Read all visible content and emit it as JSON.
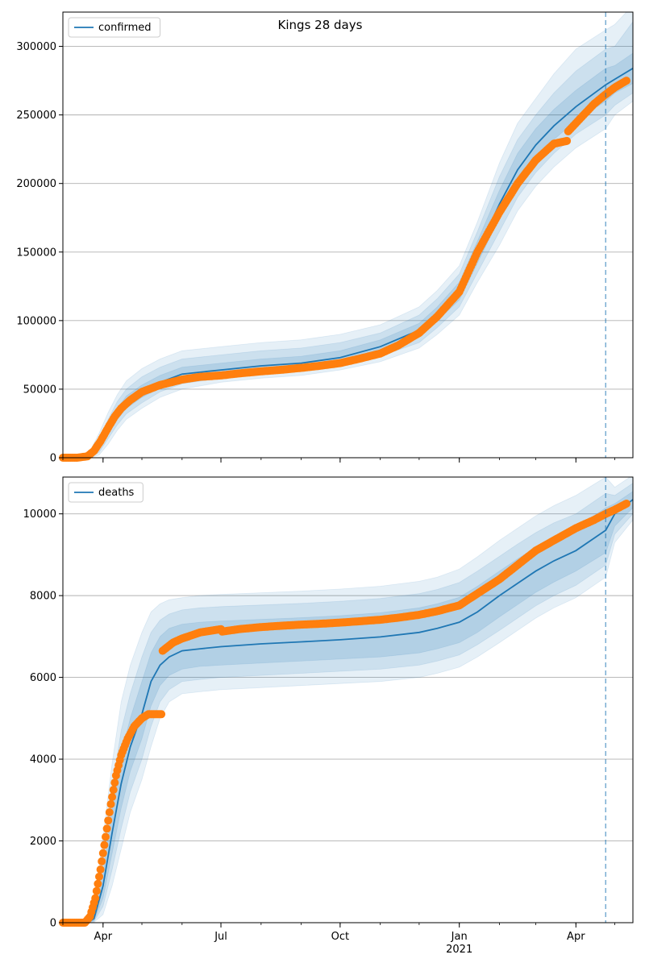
{
  "figure": {
    "title": "Kings 28 days"
  },
  "chart_data": [
    {
      "type": "line",
      "name": "confirmed-panel",
      "legend": {
        "label": "confirmed",
        "placement": "top-left"
      },
      "ylim": [
        0,
        325000
      ],
      "yticks": [
        0,
        50000,
        100000,
        150000,
        200000,
        250000,
        300000
      ],
      "grid": "y",
      "xlim": [
        "2020-03-01",
        "2021-05-15"
      ],
      "xticks": [
        {
          "date": "2020-04-01",
          "label": "Apr",
          "sublabel": ""
        },
        {
          "date": "2020-07-01",
          "label": "Jul",
          "sublabel": ""
        },
        {
          "date": "2020-10-01",
          "label": "Oct",
          "sublabel": ""
        },
        {
          "date": "2021-01-01",
          "label": "Jan",
          "sublabel": "2021"
        },
        {
          "date": "2021-04-01",
          "label": "Apr",
          "sublabel": ""
        }
      ],
      "vline": {
        "date": "2021-04-24",
        "style": "dashed"
      },
      "model": {
        "x": [
          "2020-03-01",
          "2020-03-15",
          "2020-03-22",
          "2020-03-29",
          "2020-04-05",
          "2020-04-12",
          "2020-04-19",
          "2020-05-01",
          "2020-05-15",
          "2020-06-01",
          "2020-07-01",
          "2020-08-01",
          "2020-09-01",
          "2020-10-01",
          "2020-11-01",
          "2020-12-01",
          "2020-12-15",
          "2021-01-01",
          "2021-01-15",
          "2021-02-01",
          "2021-02-15",
          "2021-03-01",
          "2021-03-15",
          "2021-04-01",
          "2021-04-24",
          "2021-05-01",
          "2021-05-15"
        ],
        "median": [
          0,
          0,
          1000,
          8000,
          20000,
          32000,
          40000,
          48000,
          55000,
          61000,
          64000,
          67000,
          69000,
          73000,
          81000,
          93000,
          105000,
          122000,
          150000,
          185000,
          210000,
          228000,
          242000,
          256000,
          272000,
          276000,
          284000
        ],
        "band50": [
          [
            0,
            0,
            0,
            6000,
            17000,
            28000,
            36000,
            44000,
            51000,
            57000,
            61000,
            64000,
            66000,
            70000,
            77000,
            88000,
            100000,
            115000,
            142000,
            175000,
            200000,
            218000,
            232000,
            246000,
            260000,
            266000,
            273000
          ],
          [
            0,
            0,
            2000,
            11000,
            24000,
            36000,
            45000,
            53000,
            60000,
            66000,
            69000,
            72000,
            74000,
            78000,
            86000,
            98000,
            110000,
            128000,
            158000,
            195000,
            222000,
            240000,
            254000,
            268000,
            284000,
            286000,
            295000
          ]
        ],
        "band80": [
          [
            0,
            0,
            0,
            4000,
            14000,
            24000,
            32000,
            40000,
            48000,
            54000,
            58000,
            61000,
            63000,
            67000,
            74000,
            84000,
            95000,
            110000,
            135000,
            165000,
            190000,
            208000,
            222000,
            236000,
            250000,
            257000,
            266000
          ],
          [
            0,
            0,
            3500,
            14000,
            28000,
            41000,
            50000,
            59000,
            66000,
            72000,
            75000,
            78000,
            80000,
            84000,
            91000,
            104000,
            116000,
            134000,
            165000,
            205000,
            232000,
            250000,
            266000,
            282000,
            298000,
            300000,
            318000
          ]
        ],
        "band95": [
          [
            0,
            0,
            0,
            2000,
            10000,
            20000,
            28000,
            36000,
            44000,
            50000,
            55000,
            58000,
            60000,
            64000,
            70000,
            80000,
            90000,
            104000,
            128000,
            155000,
            180000,
            198000,
            212000,
            226000,
            240000,
            250000,
            260000
          ],
          [
            0,
            0,
            5000,
            18000,
            33000,
            46000,
            56000,
            65000,
            72000,
            78000,
            81000,
            84000,
            86000,
            90000,
            97000,
            110000,
            122000,
            140000,
            172000,
            215000,
            244000,
            262000,
            280000,
            298000,
            312000,
            316000,
            330000
          ]
        ]
      },
      "observed": {
        "x": [
          "2020-03-01",
          "2020-03-12",
          "2020-03-20",
          "2020-03-25",
          "2020-03-30",
          "2020-04-05",
          "2020-04-10",
          "2020-04-15",
          "2020-04-22",
          "2020-05-01",
          "2020-05-15",
          "2020-06-01",
          "2020-06-15",
          "2020-07-01",
          "2020-07-15",
          "2020-08-01",
          "2020-08-15",
          "2020-09-01",
          "2020-09-15",
          "2020-10-01",
          "2020-10-15",
          "2020-11-01",
          "2020-11-15",
          "2020-12-01",
          "2020-12-15",
          "2021-01-01",
          "2021-01-15",
          "2021-02-01",
          "2021-02-15",
          "2021-03-01",
          "2021-03-15",
          "2021-03-25",
          "2021-03-26",
          "2021-04-05",
          "2021-04-15",
          "2021-04-24",
          "2021-05-01",
          "2021-05-10"
        ],
        "values": [
          0,
          0,
          1000,
          5000,
          12000,
          22000,
          30000,
          36000,
          42000,
          48000,
          53000,
          57000,
          59000,
          60000,
          61500,
          63000,
          64000,
          65500,
          67000,
          69000,
          72000,
          76000,
          82000,
          91000,
          103000,
          121000,
          150000,
          179000,
          200000,
          217000,
          229000,
          231000,
          238000,
          248000,
          258000,
          265000,
          270000,
          275000
        ]
      }
    },
    {
      "type": "line",
      "name": "deaths-panel",
      "legend": {
        "label": "deaths",
        "placement": "top-left"
      },
      "ylim": [
        0,
        10900
      ],
      "yticks": [
        0,
        2000,
        4000,
        6000,
        8000,
        10000
      ],
      "grid": "y",
      "xlim": [
        "2020-03-01",
        "2021-05-15"
      ],
      "xticks": [
        {
          "date": "2020-04-01",
          "label": "Apr",
          "sublabel": ""
        },
        {
          "date": "2020-07-01",
          "label": "Jul",
          "sublabel": ""
        },
        {
          "date": "2020-10-01",
          "label": "Oct",
          "sublabel": ""
        },
        {
          "date": "2021-01-01",
          "label": "Jan",
          "sublabel": "2021"
        },
        {
          "date": "2021-04-01",
          "label": "Apr",
          "sublabel": ""
        }
      ],
      "vline": {
        "date": "2021-04-24",
        "style": "dashed"
      },
      "model": {
        "x": [
          "2020-03-01",
          "2020-03-20",
          "2020-03-25",
          "2020-04-01",
          "2020-04-08",
          "2020-04-15",
          "2020-04-22",
          "2020-05-01",
          "2020-05-08",
          "2020-05-15",
          "2020-05-22",
          "2020-06-01",
          "2020-06-15",
          "2020-07-01",
          "2020-08-01",
          "2020-09-01",
          "2020-10-01",
          "2020-11-01",
          "2020-12-01",
          "2020-12-15",
          "2021-01-01",
          "2021-01-15",
          "2021-02-01",
          "2021-02-15",
          "2021-03-01",
          "2021-03-15",
          "2021-04-01",
          "2021-04-24",
          "2021-05-01",
          "2021-05-15"
        ],
        "median": [
          0,
          0,
          100,
          900,
          2200,
          3400,
          4300,
          5100,
          5900,
          6300,
          6500,
          6650,
          6700,
          6750,
          6820,
          6870,
          6920,
          6990,
          7100,
          7200,
          7350,
          7600,
          8000,
          8300,
          8600,
          8850,
          9100,
          9600,
          10000,
          10350
        ],
        "band50": [
          [
            0,
            0,
            50,
            600,
            1700,
            2800,
            3700,
            4500,
            5300,
            5800,
            6050,
            6200,
            6270,
            6300,
            6350,
            6400,
            6450,
            6500,
            6600,
            6700,
            6850,
            7100,
            7480,
            7780,
            8080,
            8330,
            8600,
            9050,
            9700,
            10150
          ],
          [
            0,
            0,
            150,
            1200,
            2800,
            4100,
            5000,
            5900,
            6600,
            7000,
            7200,
            7300,
            7350,
            7380,
            7420,
            7460,
            7510,
            7580,
            7700,
            7800,
            7960,
            8230,
            8600,
            8900,
            9180,
            9420,
            9650,
            10150,
            10250,
            10550
          ]
        ],
        "band80": [
          [
            0,
            0,
            30,
            400,
            1300,
            2300,
            3200,
            4000,
            4800,
            5400,
            5700,
            5900,
            5950,
            6000,
            6050,
            6100,
            6150,
            6200,
            6300,
            6400,
            6550,
            6800,
            7150,
            7450,
            7750,
            8000,
            8250,
            8750,
            9500,
            10000
          ],
          [
            0,
            0,
            250,
            1600,
            3300,
            4700,
            5600,
            6500,
            7100,
            7400,
            7550,
            7650,
            7700,
            7730,
            7770,
            7810,
            7860,
            7930,
            8050,
            8150,
            8320,
            8600,
            8960,
            9260,
            9540,
            9780,
            10000,
            10500,
            10450,
            10750
          ]
        ],
        "band95": [
          [
            0,
            0,
            10,
            200,
            900,
            1800,
            2700,
            3500,
            4300,
            5000,
            5400,
            5600,
            5650,
            5700,
            5750,
            5800,
            5850,
            5900,
            6000,
            6100,
            6250,
            6500,
            6850,
            7150,
            7450,
            7700,
            7950,
            8450,
            9300,
            9850
          ],
          [
            0,
            0,
            400,
            2100,
            3900,
            5400,
            6300,
            7100,
            7600,
            7800,
            7900,
            7950,
            8000,
            8030,
            8070,
            8110,
            8160,
            8230,
            8350,
            8450,
            8650,
            8950,
            9350,
            9650,
            9950,
            10200,
            10450,
            10900,
            10650,
            10950
          ]
        ]
      },
      "observed": {
        "x": [
          "2020-03-01",
          "2020-03-18",
          "2020-03-22",
          "2020-03-26",
          "2020-03-30",
          "2020-04-03",
          "2020-04-07",
          "2020-04-11",
          "2020-04-15",
          "2020-04-20",
          "2020-04-25",
          "2020-05-01",
          "2020-05-06",
          "2020-05-11",
          "2020-05-16",
          "2020-05-17",
          "2020-05-25",
          "2020-06-01",
          "2020-06-15",
          "2020-07-01",
          "2020-07-02",
          "2020-07-15",
          "2020-08-01",
          "2020-08-15",
          "2020-09-01",
          "2020-09-15",
          "2020-10-01",
          "2020-10-15",
          "2020-11-01",
          "2020-11-15",
          "2020-12-01",
          "2020-12-15",
          "2021-01-01",
          "2021-01-15",
          "2021-02-01",
          "2021-02-15",
          "2021-03-01",
          "2021-03-15",
          "2021-04-01",
          "2021-04-15",
          "2021-04-24",
          "2021-05-01",
          "2021-05-10"
        ],
        "values": [
          0,
          0,
          150,
          600,
          1300,
          2100,
          2900,
          3600,
          4100,
          4500,
          4800,
          5000,
          5100,
          5100,
          5100,
          6650,
          6850,
          6950,
          7100,
          7180,
          7120,
          7180,
          7230,
          7260,
          7290,
          7310,
          7340,
          7370,
          7410,
          7460,
          7530,
          7620,
          7760,
          8050,
          8400,
          8750,
          9100,
          9350,
          9650,
          9850,
          10000,
          10100,
          10250
        ]
      }
    }
  ]
}
